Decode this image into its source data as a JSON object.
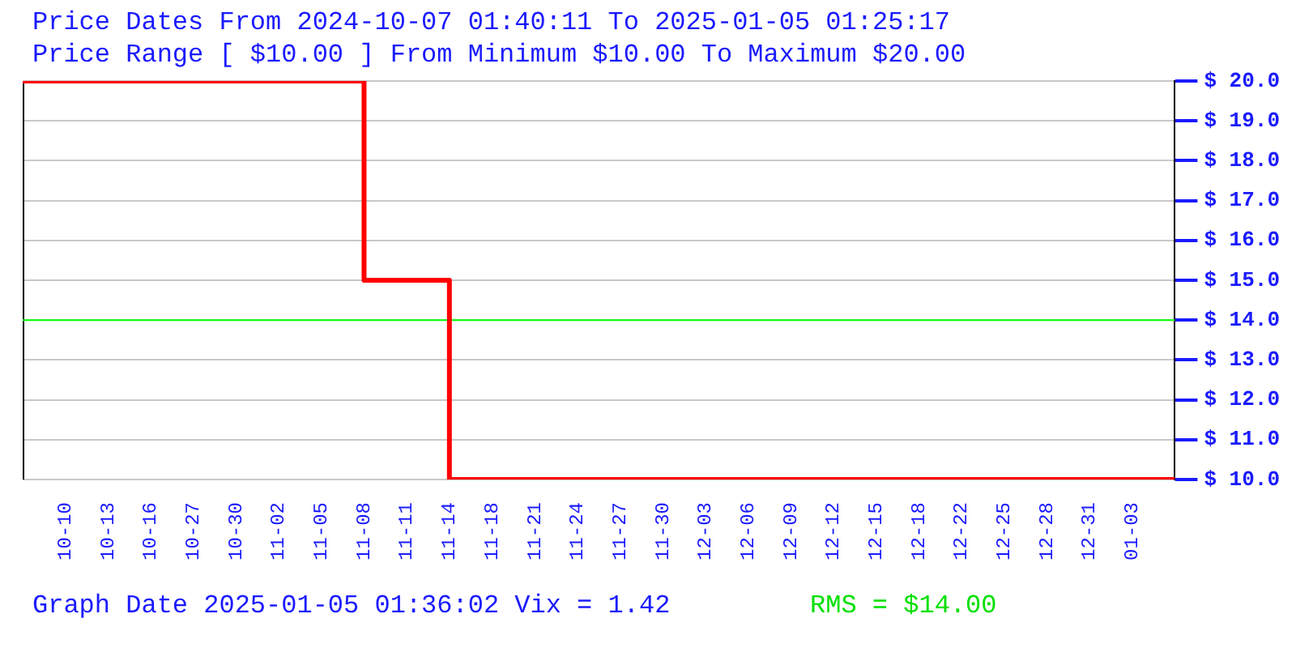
{
  "chart_data": {
    "type": "step",
    "title": "Price Dates From 2024-10-07 01:40:11 To 2025-01-05 01:25:17",
    "subtitle": "Price Range [ $10.00 ] From Minimum $10.00 To Maximum $20.00",
    "categories": [
      null,
      "10-10",
      "10-13",
      "10-16",
      "10-27",
      "10-30",
      "11-02",
      "11-05",
      "11-08",
      "11-11",
      "11-14",
      "11-18",
      "11-21",
      "11-24",
      "11-27",
      "11-30",
      "12-03",
      "12-06",
      "12-09",
      "12-12",
      "12-15",
      "12-18",
      "12-22",
      "12-25",
      "12-28",
      "12-31",
      "01-03",
      null
    ],
    "series": [
      {
        "color": "#ff0000",
        "values": [
          20,
          20,
          20,
          20,
          20,
          20,
          20,
          20,
          15,
          15,
          10,
          10,
          10,
          10,
          10,
          10,
          10,
          10,
          10,
          10,
          10,
          10,
          10,
          10,
          10,
          10,
          10,
          10
        ]
      }
    ],
    "ylim": [
      10,
      20
    ],
    "yticks": [
      {
        "value": 10,
        "label": "$ 10.0"
      },
      {
        "value": 11,
        "label": "$ 11.0"
      },
      {
        "value": 12,
        "label": "$ 12.0"
      },
      {
        "value": 13,
        "label": "$ 13.0"
      },
      {
        "value": 14,
        "label": "$ 14.0"
      },
      {
        "value": 15,
        "label": "$ 15.0"
      },
      {
        "value": 16,
        "label": "$ 16.0"
      },
      {
        "value": 17,
        "label": "$ 17.0"
      },
      {
        "value": 18,
        "label": "$ 18.0"
      },
      {
        "value": 19,
        "label": "$ 19.0"
      },
      {
        "value": 20,
        "label": "$ 20.0"
      }
    ],
    "grid": "y",
    "legend": false,
    "marker": "none",
    "line_style": "solid",
    "ref_lines": [
      {
        "axis": "y",
        "value": 14,
        "color": "#00ff00"
      }
    ],
    "annotations": [
      "Graph Date 2025-01-05 01:36:02 Vix = 1.42",
      "RMS = $14.00"
    ]
  }
}
